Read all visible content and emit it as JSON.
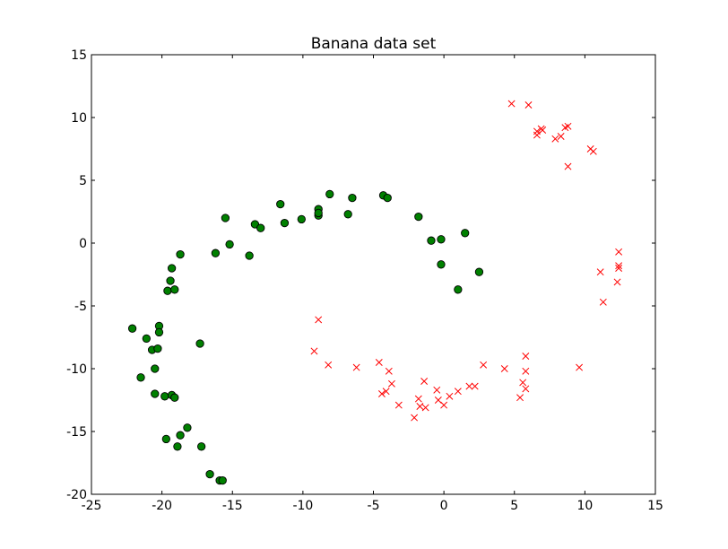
{
  "chart_data": {
    "type": "scatter",
    "title": "Banana data set",
    "xlabel": "",
    "ylabel": "",
    "xlim": [
      -25,
      15
    ],
    "ylim": [
      -20,
      15
    ],
    "xticks": [
      -25,
      -20,
      -15,
      -10,
      -5,
      0,
      5,
      10,
      15
    ],
    "yticks": [
      -20,
      -15,
      -10,
      -5,
      0,
      5,
      10,
      15
    ],
    "grid": false,
    "legend": "none",
    "series": [
      {
        "marker": "circle",
        "color": "#008000",
        "edge_color": "#000000",
        "points": [
          [
            -22.1,
            -6.8
          ],
          [
            -21.5,
            -10.7
          ],
          [
            -21.1,
            -7.6
          ],
          [
            -20.7,
            -8.5
          ],
          [
            -20.5,
            -10.0
          ],
          [
            -20.5,
            -12.0
          ],
          [
            -20.3,
            -8.4
          ],
          [
            -20.2,
            -6.6
          ],
          [
            -20.2,
            -7.1
          ],
          [
            -19.8,
            -12.2
          ],
          [
            -19.7,
            -15.6
          ],
          [
            -19.6,
            -3.8
          ],
          [
            -19.4,
            -3.0
          ],
          [
            -19.3,
            -2.0
          ],
          [
            -19.3,
            -12.1
          ],
          [
            -19.1,
            -3.7
          ],
          [
            -19.1,
            -12.3
          ],
          [
            -18.9,
            -16.2
          ],
          [
            -18.7,
            -15.3
          ],
          [
            -18.7,
            -0.9
          ],
          [
            -18.2,
            -14.7
          ],
          [
            -17.3,
            -8.0
          ],
          [
            -17.2,
            -16.2
          ],
          [
            -16.6,
            -18.4
          ],
          [
            -15.9,
            -18.9
          ],
          [
            -15.7,
            -18.9
          ],
          [
            -16.2,
            -0.8
          ],
          [
            -15.5,
            2.0
          ],
          [
            -15.2,
            -0.1
          ],
          [
            -13.8,
            -1.0
          ],
          [
            -13.4,
            1.5
          ],
          [
            -13.0,
            1.2
          ],
          [
            -11.6,
            3.1
          ],
          [
            -11.3,
            1.6
          ],
          [
            -10.1,
            1.9
          ],
          [
            -8.9,
            2.7
          ],
          [
            -8.9,
            2.2
          ],
          [
            -8.9,
            2.4
          ],
          [
            -8.1,
            3.9
          ],
          [
            -6.8,
            2.3
          ],
          [
            -6.5,
            3.6
          ],
          [
            -4.3,
            3.8
          ],
          [
            -4.0,
            3.6
          ],
          [
            -1.8,
            2.1
          ],
          [
            -0.9,
            0.2
          ],
          [
            -0.2,
            0.3
          ],
          [
            -0.2,
            -1.7
          ],
          [
            1.0,
            -3.7
          ],
          [
            1.5,
            0.8
          ],
          [
            2.5,
            -2.3
          ]
        ]
      },
      {
        "marker": "x",
        "color": "#ff0000",
        "points": [
          [
            4.8,
            11.1
          ],
          [
            6.0,
            11.0
          ],
          [
            6.6,
            8.9
          ],
          [
            6.6,
            8.6
          ],
          [
            6.9,
            9.1
          ],
          [
            7.0,
            9.0
          ],
          [
            7.9,
            8.3
          ],
          [
            8.3,
            8.5
          ],
          [
            8.6,
            9.2
          ],
          [
            8.8,
            9.3
          ],
          [
            8.8,
            6.1
          ],
          [
            10.4,
            7.5
          ],
          [
            10.6,
            7.3
          ],
          [
            12.4,
            -0.7
          ],
          [
            12.4,
            -1.8
          ],
          [
            12.4,
            -2.0
          ],
          [
            12.3,
            -3.1
          ],
          [
            11.1,
            -2.3
          ],
          [
            11.3,
            -4.7
          ],
          [
            9.6,
            -9.9
          ],
          [
            4.3,
            -10.0
          ],
          [
            5.4,
            -12.3
          ],
          [
            5.6,
            -11.1
          ],
          [
            5.8,
            -9.0
          ],
          [
            5.8,
            -10.2
          ],
          [
            5.8,
            -11.6
          ],
          [
            2.8,
            -9.7
          ],
          [
            2.2,
            -11.4
          ],
          [
            1.8,
            -11.4
          ],
          [
            1.0,
            -11.8
          ],
          [
            0.4,
            -12.2
          ],
          [
            0.0,
            -12.9
          ],
          [
            -0.4,
            -12.5
          ],
          [
            -0.5,
            -11.7
          ],
          [
            -1.3,
            -13.1
          ],
          [
            -1.4,
            -11.0
          ],
          [
            -1.7,
            -13.0
          ],
          [
            -1.8,
            -12.4
          ],
          [
            -2.1,
            -13.9
          ],
          [
            -3.2,
            -12.9
          ],
          [
            -3.7,
            -11.2
          ],
          [
            -3.9,
            -10.2
          ],
          [
            -4.1,
            -11.8
          ],
          [
            -4.4,
            -12.0
          ],
          [
            -4.6,
            -9.5
          ],
          [
            -6.2,
            -9.9
          ],
          [
            -8.2,
            -9.7
          ],
          [
            -9.2,
            -8.6
          ],
          [
            -8.9,
            -6.1
          ]
        ]
      }
    ]
  }
}
